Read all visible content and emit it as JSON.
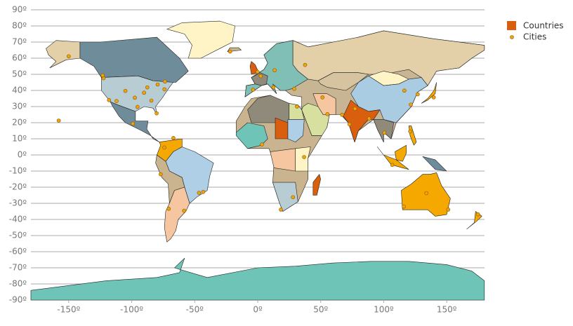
{
  "chart_data": {
    "type": "scatter",
    "xlim": [
      -180,
      180
    ],
    "ylim": [
      -90,
      90
    ],
    "xticks": [
      {
        "value": -150,
        "label": "-150º"
      },
      {
        "value": -100,
        "label": "-100º"
      },
      {
        "value": -50,
        "label": "-50º"
      },
      {
        "value": 0,
        "label": "0º"
      },
      {
        "value": 50,
        "label": "50º"
      },
      {
        "value": 100,
        "label": "100º"
      },
      {
        "value": 150,
        "label": "150º"
      }
    ],
    "yticks": [
      {
        "value": 90,
        "label": "90º"
      },
      {
        "value": 80,
        "label": "80º"
      },
      {
        "value": 70,
        "label": "70º"
      },
      {
        "value": 60,
        "label": "60º"
      },
      {
        "value": 50,
        "label": "50º"
      },
      {
        "value": 40,
        "label": "40º"
      },
      {
        "value": 30,
        "label": "30º"
      },
      {
        "value": 20,
        "label": "20º"
      },
      {
        "value": 10,
        "label": "10º"
      },
      {
        "value": 0,
        "label": "0º"
      },
      {
        "value": -10,
        "label": "-10º"
      },
      {
        "value": -20,
        "label": "-20º"
      },
      {
        "value": -30,
        "label": "-30º"
      },
      {
        "value": -40,
        "label": "-40º"
      },
      {
        "value": -50,
        "label": "-50º"
      },
      {
        "value": -60,
        "label": "-60º"
      },
      {
        "value": -70,
        "label": "-70º"
      },
      {
        "value": -80,
        "label": "-80º"
      },
      {
        "value": -90,
        "label": "-90º"
      }
    ],
    "grid": true,
    "legend": "top-right",
    "series": [
      {
        "name": "Countries",
        "color": "#d95f0e"
      },
      {
        "name": "Cities",
        "color": "#f0a30a",
        "x": [
          -74,
          -118,
          -87.6,
          -95.4,
          -80.2,
          -122.3,
          -105,
          -84.4,
          -79.4,
          -73.6,
          -123.1,
          -99.1,
          -150,
          -157.9,
          -74.1,
          -66.9,
          -77,
          -46.6,
          -43.2,
          -58.4,
          -70.6,
          -0.1,
          2.35,
          -3.7,
          12.5,
          13.4,
          37.6,
          29,
          31.2,
          3.4,
          36.8,
          28,
          18.4,
          55.3,
          51.4,
          67,
          77.2,
          72.8,
          88.4,
          100.5,
          116.4,
          121.5,
          139.7,
          127,
          121,
          106.8,
          151.2,
          -21.9,
          115.9,
          133.9,
          174.8,
          -90.2,
          -112,
          -97.5
        ],
        "values": [
          40.7,
          34,
          41.9,
          29.8,
          25.8,
          47.6,
          39.7,
          33.7,
          43.7,
          45.5,
          49.3,
          19.4,
          61.2,
          21.3,
          4.6,
          10.5,
          -12,
          -23.5,
          -22.9,
          -34.6,
          -33.4,
          51.5,
          48.9,
          40.4,
          41.9,
          52.5,
          55.8,
          41,
          30,
          6.5,
          -1.3,
          -26.2,
          -33.9,
          25.3,
          35.7,
          24.9,
          28.6,
          19,
          22.6,
          13.8,
          39.9,
          31.2,
          35.7,
          37.6,
          14.6,
          -6.2,
          -33.9,
          64.1,
          -32,
          -23.7,
          -36.8,
          38.6,
          33.4,
          35.5
        ]
      }
    ]
  }
}
